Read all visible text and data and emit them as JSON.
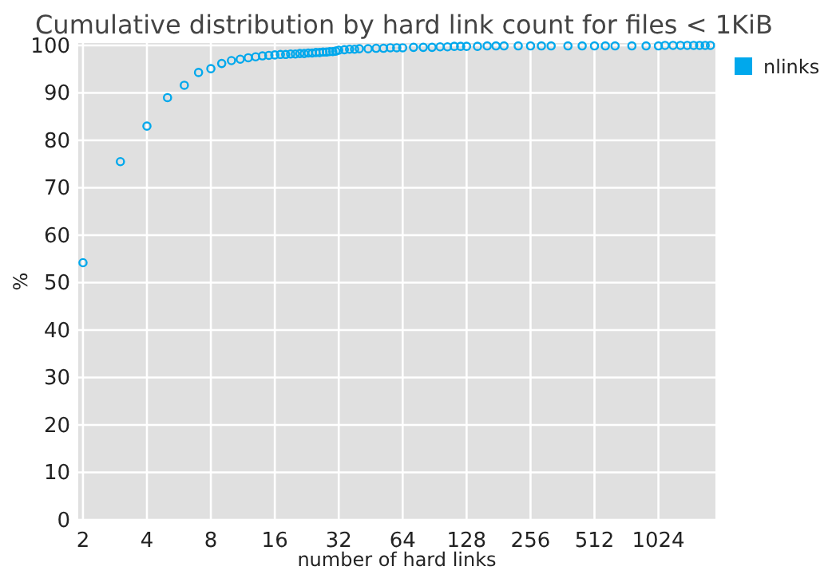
{
  "chart_data": {
    "type": "scatter",
    "title": "Cumulative distribution by hard link count for files < 1KiB",
    "xlabel": "number of hard links",
    "ylabel": "%",
    "log": "x",
    "xlim": [
      1.9,
      1900
    ],
    "xticks": [
      2,
      4,
      8,
      16,
      32,
      64,
      128,
      256,
      512,
      1024
    ],
    "ylim": [
      0,
      100.5
    ],
    "yticks": [
      0,
      10,
      20,
      30,
      40,
      50,
      60,
      70,
      80,
      90,
      100
    ],
    "grid": true,
    "legend": "top right",
    "marker": "circle",
    "series": [
      {
        "name": "nlinks",
        "color": "#00a8ec",
        "x": [
          2,
          3,
          4,
          5,
          6,
          7,
          8,
          9,
          10,
          11,
          12,
          13,
          14,
          15,
          16,
          17,
          18,
          19,
          20,
          21,
          22,
          23,
          24,
          25,
          26,
          27,
          28,
          29,
          30,
          31,
          32,
          34,
          36,
          38,
          40,
          44,
          48,
          52,
          56,
          60,
          64,
          72,
          80,
          88,
          96,
          104,
          112,
          120,
          128,
          144,
          160,
          176,
          192,
          224,
          256,
          288,
          320,
          384,
          448,
          512,
          576,
          640,
          768,
          896,
          1024,
          1100,
          1200,
          1300,
          1400,
          1500,
          1600,
          1700,
          1800
        ],
        "values": [
          54.2,
          75.5,
          83,
          89,
          91.6,
          94.3,
          95.1,
          96.2,
          96.8,
          97.1,
          97.4,
          97.6,
          97.8,
          97.9,
          98,
          98.1,
          98.1,
          98.2,
          98.2,
          98.3,
          98.3,
          98.4,
          98.4,
          98.5,
          98.5,
          98.6,
          98.6,
          98.7,
          98.7,
          98.8,
          99,
          99.1,
          99.2,
          99.2,
          99.3,
          99.3,
          99.4,
          99.4,
          99.5,
          99.5,
          99.5,
          99.6,
          99.6,
          99.6,
          99.7,
          99.7,
          99.8,
          99.8,
          99.8,
          99.8,
          99.9,
          99.9,
          99.9,
          99.9,
          99.9,
          99.9,
          99.9,
          99.9,
          99.9,
          99.9,
          99.9,
          99.9,
          99.9,
          99.9,
          99.9,
          100,
          100,
          100,
          100,
          100,
          100,
          100,
          100
        ]
      }
    ]
  }
}
